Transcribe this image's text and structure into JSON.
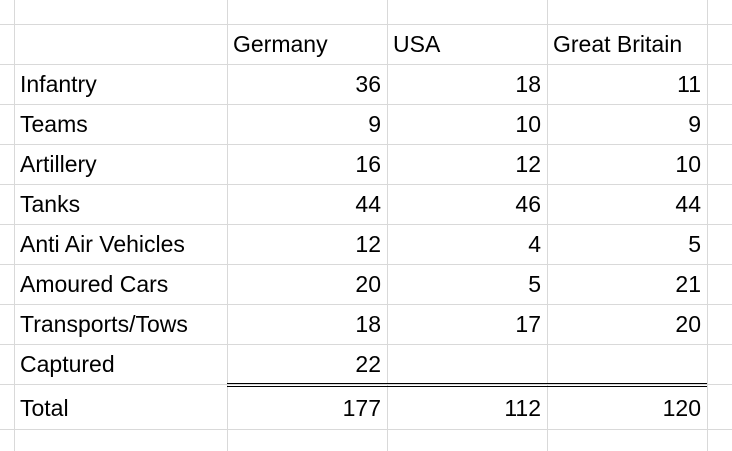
{
  "table": {
    "columns": [
      "Germany",
      "USA",
      "Great Britain"
    ],
    "rows": [
      [
        "Infantry",
        36,
        18,
        11
      ],
      [
        "Teams",
        9,
        10,
        9
      ],
      [
        "Artillery",
        16,
        12,
        10
      ],
      [
        "Tanks",
        44,
        46,
        44
      ],
      [
        "Anti Air Vehicles",
        12,
        4,
        5
      ],
      [
        "Amoured Cars",
        20,
        5,
        21
      ],
      [
        "Transports/Tows",
        18,
        17,
        20
      ],
      [
        "Captured",
        22
      ]
    ],
    "total": [
      "Total",
      177,
      112,
      120
    ]
  }
}
